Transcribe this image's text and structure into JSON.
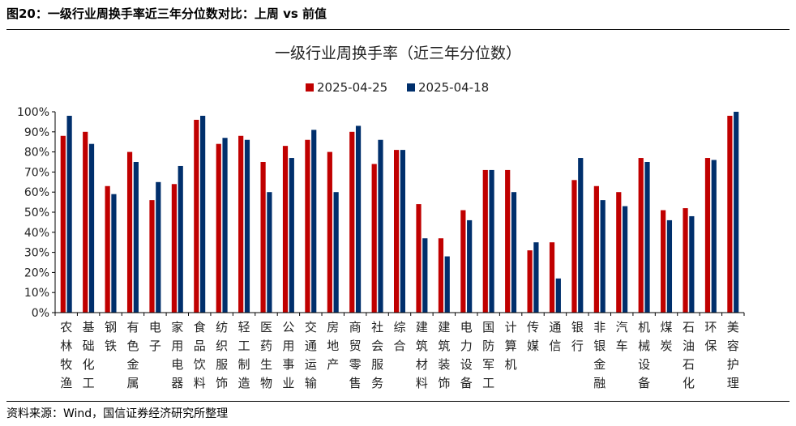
{
  "header": {
    "caption": "图20：一级行业周换手率近三年分位数对比：上周 vs 前值"
  },
  "footer": {
    "source": "资料来源：Wind，国信证券经济研究所整理"
  },
  "colors": {
    "series1": "#C00000",
    "series2": "#002F6C",
    "axis": "#000000"
  },
  "chart_data": {
    "type": "bar",
    "title": "一级行业周换手率（近三年分位数）",
    "xlabel": "",
    "ylabel": "",
    "ylim": [
      0,
      100
    ],
    "yticks": [
      "0%",
      "10%",
      "20%",
      "30%",
      "40%",
      "50%",
      "60%",
      "70%",
      "80%",
      "90%",
      "100%"
    ],
    "legend_position": "top-center",
    "grid": false,
    "categories": [
      "农林牧渔",
      "基础化工",
      "钢铁",
      "有色金属",
      "电子",
      "家用电器",
      "食品饮料",
      "纺织服饰",
      "轻工制造",
      "医药生物",
      "公用事业",
      "交通运输",
      "房地产",
      "商贸零售",
      "社会服务",
      "综合",
      "建筑材料",
      "建筑装饰",
      "电力设备",
      "国防军工",
      "计算机",
      "传媒",
      "通信",
      "银行",
      "非银金融",
      "汽车",
      "机械设备",
      "煤炭",
      "石油石化",
      "环保",
      "美容护理"
    ],
    "series": [
      {
        "name": "2025-04-25",
        "values": [
          88,
          90,
          63,
          80,
          56,
          64,
          96,
          84,
          88,
          75,
          83,
          86,
          80,
          90,
          74,
          81,
          54,
          37,
          51,
          71,
          71,
          31,
          35,
          66,
          63,
          60,
          77,
          51,
          52,
          77,
          98
        ]
      },
      {
        "name": "2025-04-18",
        "values": [
          98,
          84,
          59,
          75,
          65,
          73,
          98,
          87,
          86,
          60,
          77,
          91,
          60,
          93,
          86,
          81,
          37,
          28,
          46,
          71,
          60,
          35,
          17,
          77,
          56,
          53,
          75,
          46,
          48,
          76,
          100
        ]
      }
    ]
  }
}
